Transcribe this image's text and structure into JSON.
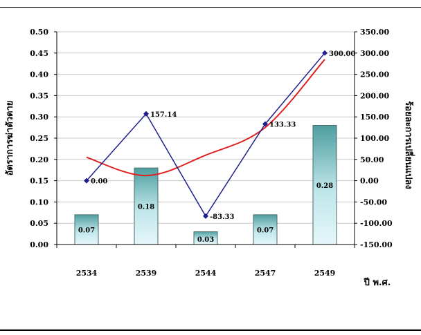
{
  "chart_data": {
    "type": "bar",
    "categories": [
      "2534",
      "2539",
      "2544",
      "2547",
      "2549"
    ],
    "xlabel": "ปี พ.ศ.",
    "y_left": {
      "label": "อัตราการฆ่าตัวตาย",
      "ylim": [
        0,
        0.5
      ],
      "ticks": [
        "0.00",
        "0.05",
        "0.10",
        "0.15",
        "0.20",
        "0.25",
        "0.30",
        "0.35",
        "0.40",
        "0.45",
        "0.50"
      ]
    },
    "y_right": {
      "label": "ร้อยละการเปลี่ยนแปลง",
      "ylim": [
        -150,
        350
      ],
      "ticks": [
        "-150.00",
        "-100.00",
        "-50.00",
        "0.00",
        "50.00",
        "100.00",
        "150.00",
        "200.00",
        "250.00",
        "300.00",
        "350.00"
      ]
    },
    "series": [
      {
        "type": "bar",
        "axis": "left",
        "values": [
          0.07,
          0.18,
          0.03,
          0.07,
          0.28
        ],
        "labels": [
          "0.07",
          "0.18",
          "0.03",
          "0.07",
          "0.28"
        ]
      },
      {
        "type": "line",
        "axis": "right",
        "values": [
          0.0,
          157.14,
          -83.33,
          133.33,
          300.0
        ],
        "labels": [
          "0.00",
          "157.14",
          "-83.33",
          "133.33",
          "300.00"
        ],
        "color": "#1f1f8f"
      },
      {
        "type": "trend",
        "axis": "right",
        "values": [
          55,
          12,
          60,
          125,
          285
        ],
        "color": "#e02020"
      }
    ],
    "grid": true
  }
}
